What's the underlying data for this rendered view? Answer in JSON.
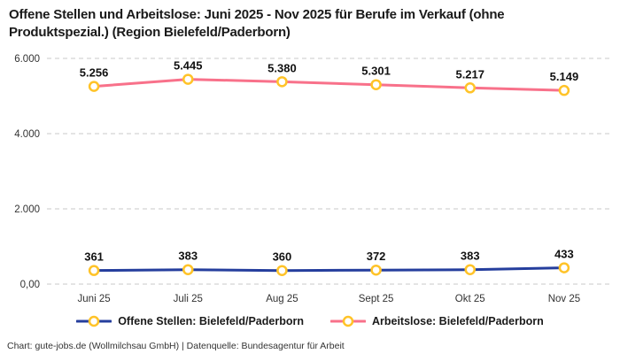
{
  "footer": "Chart: gute-jobs.de (Wollmilchsau GmbH) | Datenquelle: Bundesagentur für Arbeit",
  "colors": {
    "open_positions": "#253E9D",
    "unemployed": "#F8718A",
    "marker": "#FFC328",
    "grid": "#C9C9C9",
    "title_text": "#1A1A1A",
    "axis_text": "#333333",
    "label_text": "#111111"
  },
  "chart_data": {
    "type": "line",
    "title": "Offene Stellen und Arbeitslose: Juni 2025 - Nov 2025 für Berufe im Verkauf (ohne Produktspezial.) (Region Bielefeld/Paderborn)",
    "categories": [
      "Juni 25",
      "Juli 25",
      "Aug 25",
      "Sept 25",
      "Okt 25",
      "Nov 25"
    ],
    "series": [
      {
        "name": "Offene Stellen: Bielefeld/Paderborn",
        "values": [
          361,
          383,
          360,
          372,
          383,
          433
        ],
        "point_labels": [
          "361",
          "383",
          "360",
          "372",
          "383",
          "433"
        ],
        "color_key": "open_positions"
      },
      {
        "name": "Arbeitslose: Bielefeld/Paderborn",
        "values": [
          5256,
          5445,
          5380,
          5301,
          5217,
          5149
        ],
        "point_labels": [
          "5.256",
          "5.445",
          "5.380",
          "5.301",
          "5.217",
          "5.149"
        ],
        "color_key": "unemployed"
      }
    ],
    "y_ticks": [
      {
        "value": 0,
        "label": "0,00"
      },
      {
        "value": 2000,
        "label": "2.000"
      },
      {
        "value": 4000,
        "label": "4.000"
      },
      {
        "value": 6000,
        "label": "6.000"
      }
    ],
    "ylim": [
      0,
      6000
    ],
    "grid": "dashed-horizontal",
    "legend_position": "bottom",
    "marker_style": "open-circle-yellow"
  }
}
